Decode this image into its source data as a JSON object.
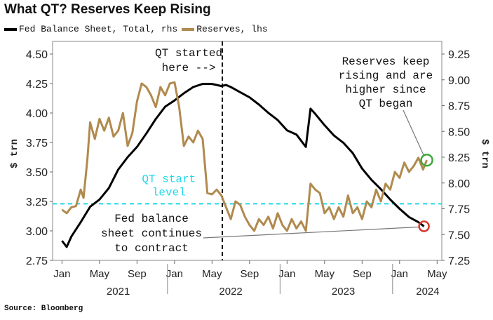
{
  "title": "What QT? Reserves Keep Rising",
  "legend": {
    "fed": "Fed Balance Sheet, Total, rhs",
    "reserves": "Reserves, lhs"
  },
  "source": "Source: Bloomberg",
  "colors": {
    "fed": "#000000",
    "reserves": "#b08a4e",
    "qt_level": "#22d8e8",
    "green_marker": "#3aa83a",
    "red_marker": "#d9362b"
  },
  "chart_data": {
    "type": "line",
    "x_unit": "months since Jan 2021",
    "xlim": [
      -1,
      40.5
    ],
    "left_axis": {
      "label": "$ trn",
      "range": [
        2.75,
        4.5
      ],
      "ticks": [
        "2.75",
        "3.00",
        "3.25",
        "3.50",
        "3.75",
        "4.00",
        "4.25",
        "4.50"
      ]
    },
    "right_axis": {
      "label": "$ trn",
      "range": [
        7.25,
        9.25
      ],
      "ticks": [
        "7.25",
        "7.50",
        "7.75",
        "8.00",
        "8.25",
        "8.50",
        "8.75",
        "9.00",
        "9.25"
      ]
    },
    "x_ticks": [
      {
        "label": "Jan",
        "x": 0
      },
      {
        "label": "May",
        "x": 4
      },
      {
        "label": "Sep",
        "x": 8
      },
      {
        "label": "Jan",
        "x": 12
      },
      {
        "label": "May",
        "x": 16
      },
      {
        "label": "Sep",
        "x": 20
      },
      {
        "label": "Jan",
        "x": 24
      },
      {
        "label": "May",
        "x": 28
      },
      {
        "label": "Sep",
        "x": 32
      },
      {
        "label": "Jan",
        "x": 36
      },
      {
        "label": "May",
        "x": 40
      }
    ],
    "year_labels": [
      {
        "label": "2021",
        "x": 6
      },
      {
        "label": "2022",
        "x": 18
      },
      {
        "label": "2023",
        "x": 30
      },
      {
        "label": "2024",
        "x": 39
      }
    ],
    "series": [
      {
        "name": "Fed Balance Sheet, Total",
        "axis": "right",
        "points": [
          [
            0,
            7.44
          ],
          [
            0.5,
            7.38
          ],
          [
            1,
            7.48
          ],
          [
            2,
            7.62
          ],
          [
            3,
            7.77
          ],
          [
            4,
            7.84
          ],
          [
            5,
            7.95
          ],
          [
            6,
            8.13
          ],
          [
            7,
            8.25
          ],
          [
            8,
            8.35
          ],
          [
            9,
            8.48
          ],
          [
            10,
            8.62
          ],
          [
            11,
            8.74
          ],
          [
            12,
            8.8
          ],
          [
            13,
            8.87
          ],
          [
            14,
            8.93
          ],
          [
            15,
            8.96
          ],
          [
            16,
            8.96
          ],
          [
            17,
            8.94
          ],
          [
            17.5,
            8.95
          ],
          [
            18,
            8.93
          ],
          [
            19,
            8.88
          ],
          [
            20,
            8.83
          ],
          [
            21,
            8.76
          ],
          [
            22,
            8.68
          ],
          [
            23,
            8.61
          ],
          [
            24,
            8.51
          ],
          [
            25,
            8.47
          ],
          [
            26,
            8.35
          ],
          [
            26.5,
            8.72
          ],
          [
            27,
            8.67
          ],
          [
            28,
            8.56
          ],
          [
            29,
            8.46
          ],
          [
            30,
            8.39
          ],
          [
            31,
            8.29
          ],
          [
            32,
            8.14
          ],
          [
            33,
            8.03
          ],
          [
            34,
            7.94
          ],
          [
            35,
            7.84
          ],
          [
            36,
            7.75
          ],
          [
            37,
            7.67
          ],
          [
            38,
            7.62
          ],
          [
            38.6,
            7.58
          ]
        ]
      },
      {
        "name": "Reserves",
        "axis": "left",
        "points": [
          [
            0,
            3.18
          ],
          [
            0.5,
            3.15
          ],
          [
            1,
            3.2
          ],
          [
            1.5,
            3.21
          ],
          [
            2,
            3.35
          ],
          [
            2.3,
            3.28
          ],
          [
            2.7,
            3.6
          ],
          [
            3,
            3.92
          ],
          [
            3.5,
            3.78
          ],
          [
            4,
            3.95
          ],
          [
            4.5,
            3.85
          ],
          [
            5,
            3.96
          ],
          [
            5.5,
            3.8
          ],
          [
            6,
            3.85
          ],
          [
            6.5,
            4.0
          ],
          [
            7,
            3.72
          ],
          [
            7.5,
            3.83
          ],
          [
            8,
            4.1
          ],
          [
            8.5,
            4.25
          ],
          [
            9,
            4.22
          ],
          [
            9.5,
            4.15
          ],
          [
            10,
            4.05
          ],
          [
            10.5,
            4.22
          ],
          [
            11,
            4.15
          ],
          [
            11.5,
            4.25
          ],
          [
            12,
            4.26
          ],
          [
            12.5,
            4.05
          ],
          [
            13,
            3.72
          ],
          [
            13.5,
            3.8
          ],
          [
            14,
            3.75
          ],
          [
            14.5,
            3.85
          ],
          [
            15,
            3.78
          ],
          [
            15.5,
            3.32
          ],
          [
            16,
            3.31
          ],
          [
            16.5,
            3.35
          ],
          [
            17,
            3.3
          ],
          [
            17.5,
            3.2
          ],
          [
            18,
            3.1
          ],
          [
            18.5,
            3.25
          ],
          [
            19,
            3.22
          ],
          [
            19.5,
            3.12
          ],
          [
            20,
            3.05
          ],
          [
            20.5,
            3.0
          ],
          [
            21,
            3.1
          ],
          [
            21.5,
            3.05
          ],
          [
            22,
            3.12
          ],
          [
            22.5,
            3.02
          ],
          [
            23,
            3.15
          ],
          [
            23.5,
            3.05
          ],
          [
            24,
            3.0
          ],
          [
            24.5,
            3.1
          ],
          [
            25,
            3.02
          ],
          [
            25.5,
            3.08
          ],
          [
            26,
            3.0
          ],
          [
            26.5,
            3.4
          ],
          [
            27,
            3.35
          ],
          [
            27.5,
            3.32
          ],
          [
            28,
            3.15
          ],
          [
            28.5,
            3.2
          ],
          [
            29,
            3.1
          ],
          [
            29.5,
            3.2
          ],
          [
            30,
            3.12
          ],
          [
            30.5,
            3.3
          ],
          [
            31,
            3.15
          ],
          [
            31.5,
            3.2
          ],
          [
            32,
            3.1
          ],
          [
            32.5,
            3.25
          ],
          [
            33,
            3.2
          ],
          [
            33.5,
            3.35
          ],
          [
            34,
            3.25
          ],
          [
            34.5,
            3.4
          ],
          [
            35,
            3.35
          ],
          [
            35.5,
            3.5
          ],
          [
            36,
            3.45
          ],
          [
            36.5,
            3.58
          ],
          [
            37,
            3.5
          ],
          [
            37.5,
            3.55
          ],
          [
            38,
            3.62
          ],
          [
            38.5,
            3.52
          ],
          [
            38.9,
            3.6
          ]
        ]
      }
    ],
    "qt_start": {
      "x": 17.1,
      "label_lines": [
        "QT started",
        "here -->"
      ]
    },
    "qt_level": {
      "y": 3.23,
      "label_lines": [
        "QT start",
        "level"
      ]
    },
    "annotations": [
      {
        "lines": [
          "Reserves keep",
          "rising and are",
          "higher since",
          "QT began"
        ],
        "target": [
          38.9,
          3.6
        ],
        "axis": "left"
      },
      {
        "lines": [
          "Fed balance",
          "sheet continues",
          "to contract"
        ],
        "target": [
          38.6,
          7.58
        ],
        "axis": "right"
      }
    ]
  }
}
